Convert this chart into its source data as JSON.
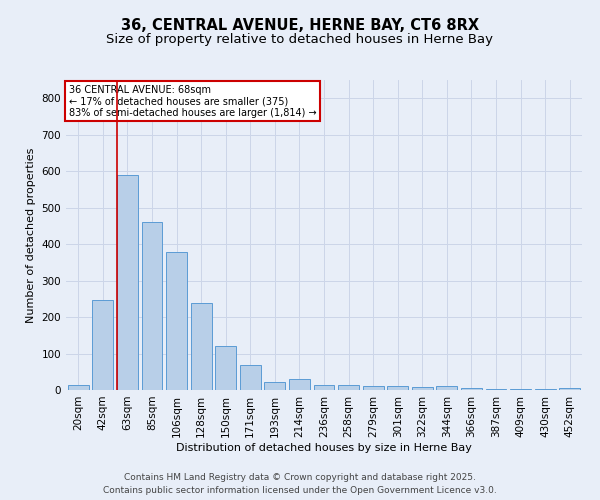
{
  "title_line1": "36, CENTRAL AVENUE, HERNE BAY, CT6 8RX",
  "title_line2": "Size of property relative to detached houses in Herne Bay",
  "xlabel": "Distribution of detached houses by size in Herne Bay",
  "ylabel": "Number of detached properties",
  "categories": [
    "20sqm",
    "42sqm",
    "63sqm",
    "85sqm",
    "106sqm",
    "128sqm",
    "150sqm",
    "171sqm",
    "193sqm",
    "214sqm",
    "236sqm",
    "258sqm",
    "279sqm",
    "301sqm",
    "322sqm",
    "344sqm",
    "366sqm",
    "387sqm",
    "409sqm",
    "430sqm",
    "452sqm"
  ],
  "values": [
    15,
    248,
    590,
    460,
    378,
    238,
    122,
    68,
    22,
    30,
    14,
    14,
    10,
    10,
    8,
    10,
    5,
    3,
    2,
    2,
    5
  ],
  "bar_color": "#b8cfe8",
  "bar_edge_color": "#5b9bd5",
  "red_line_x": 1.575,
  "annotation_title": "36 CENTRAL AVENUE: 68sqm",
  "annotation_line2": "← 17% of detached houses are smaller (375)",
  "annotation_line3": "83% of semi-detached houses are larger (1,814) →",
  "annotation_box_color": "#ffffff",
  "annotation_box_edge": "#cc0000",
  "red_line_color": "#cc0000",
  "ylim": [
    0,
    850
  ],
  "yticks": [
    0,
    100,
    200,
    300,
    400,
    500,
    600,
    700,
    800
  ],
  "grid_color": "#ccd5e8",
  "background_color": "#e8eef8",
  "footer_line1": "Contains HM Land Registry data © Crown copyright and database right 2025.",
  "footer_line2": "Contains public sector information licensed under the Open Government Licence v3.0.",
  "title_fontsize": 10.5,
  "subtitle_fontsize": 9.5,
  "axis_label_fontsize": 8,
  "tick_fontsize": 7.5,
  "annotation_fontsize": 7,
  "footer_fontsize": 6.5
}
